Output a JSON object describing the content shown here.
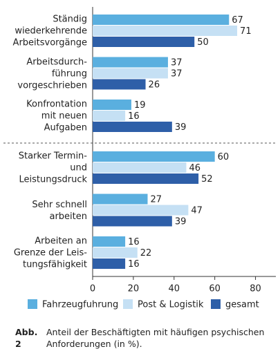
{
  "chart_data": {
    "type": "barh",
    "categories": [
      "Ständig\nwiederkehrende\nArbeitsvorgänge",
      "Arbeitsdurch-\nführung\nvorgeschrieben",
      "Konfrontation\nmit neuen\nAufgaben",
      "Starker Termin-\nund\nLeistungsdruck",
      "Sehr schnell\narbeiten",
      "Arbeiten an\nGrenze der Leis-\ntungsfähigkeit"
    ],
    "series": [
      {
        "name": "Fahrzeugfuhrung",
        "color": "#5aafdf",
        "values": [
          67,
          37,
          19,
          60,
          27,
          16
        ]
      },
      {
        "name": "Post & Logistik",
        "color": "#c5e0f4",
        "values": [
          71,
          37,
          16,
          46,
          47,
          22
        ]
      },
      {
        "name": "gesamt",
        "color": "#2e5fa8",
        "values": [
          50,
          26,
          39,
          52,
          39,
          16
        ]
      }
    ],
    "xlim": [
      0,
      90
    ],
    "xticks": [
      0,
      20,
      40,
      60,
      80
    ],
    "caption": {
      "label": "Abb. 2",
      "text": "Anteil der Beschäftigten mit häufigen psychischen Anforderungen (in %)."
    }
  }
}
